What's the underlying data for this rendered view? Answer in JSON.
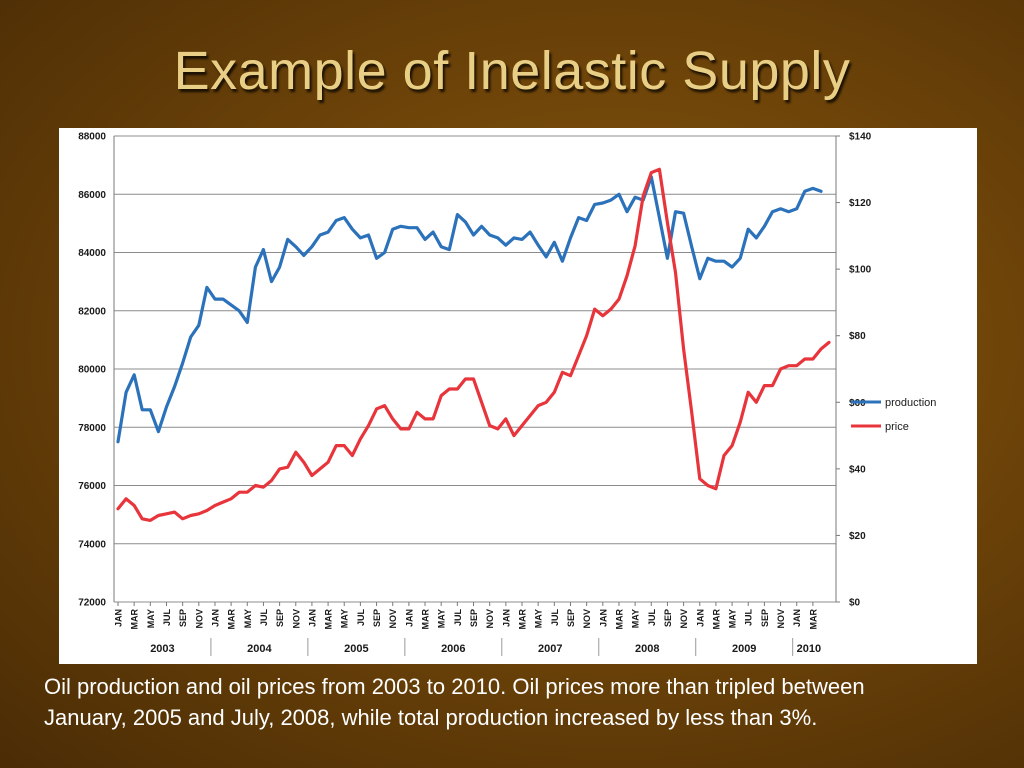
{
  "slide": {
    "title": "Example of Inelastic Supply",
    "caption": "Oil production and oil prices from 2003 to 2010.  Oil prices more than tripled between January, 2005 and July, 2008, while total production increased by less than 3%."
  },
  "chart_data": {
    "type": "line",
    "left_axis": {
      "min": 72000,
      "max": 88000,
      "ticks": [
        "72000",
        "74000",
        "76000",
        "78000",
        "80000",
        "82000",
        "84000",
        "86000",
        "88000"
      ]
    },
    "right_axis": {
      "min": 0,
      "max": 140,
      "ticks": [
        "$0",
        "$20",
        "$40",
        "$60",
        "$80",
        "$100",
        "$120",
        "$140"
      ]
    },
    "month_labels": [
      "JAN",
      "MAR",
      "MAY",
      "JUL",
      "SEP",
      "NOV"
    ],
    "month_indices": [
      0,
      2,
      4,
      6,
      8,
      10
    ],
    "years": [
      "2003",
      "2004",
      "2005",
      "2006",
      "2007",
      "2008",
      "2009",
      "2010"
    ],
    "grid": true,
    "legend_position": "right",
    "colors": {
      "production": "#2b72bb",
      "price": "#e8343b"
    },
    "series": [
      {
        "name": "production",
        "axis": "left",
        "values": [
          77500,
          79200,
          79800,
          78600,
          78600,
          77850,
          78700,
          79400,
          80200,
          81100,
          81500,
          82800,
          82400,
          82400,
          82200,
          82000,
          81600,
          83500,
          84100,
          83000,
          83500,
          84450,
          84200,
          83900,
          84200,
          84600,
          84700,
          85100,
          85200,
          84800,
          84500,
          84600,
          83800,
          84000,
          84800,
          84900,
          84850,
          84850,
          84450,
          84700,
          84200,
          84100,
          85300,
          85050,
          84600,
          84900,
          84600,
          84500,
          84250,
          84500,
          84450,
          84700,
          84250,
          83850,
          84350,
          83700,
          84500,
          85200,
          85100,
          85650,
          85700,
          85800,
          86000,
          85400,
          85900,
          85800,
          86600,
          85200,
          83800,
          85400,
          85350,
          84200,
          83100,
          83800,
          83700,
          83700,
          83500,
          83800,
          84800,
          84500,
          84900,
          85400,
          85500,
          85400,
          85500,
          86100,
          86200,
          86100
        ]
      },
      {
        "name": "price",
        "axis": "right",
        "values": [
          28,
          31,
          29,
          25,
          24.5,
          26,
          26.5,
          27,
          25,
          26,
          26.5,
          27.5,
          29,
          30,
          31,
          33,
          33,
          35,
          34.5,
          36.5,
          40,
          40.5,
          45,
          42,
          38,
          40,
          42,
          47,
          47,
          44,
          49,
          53,
          58,
          59,
          55,
          52,
          52,
          57,
          55,
          55,
          62,
          64,
          64,
          67,
          67,
          60,
          53,
          52,
          55,
          50,
          53,
          56,
          59,
          60,
          63,
          69,
          68,
          74,
          80,
          88,
          86,
          88,
          91,
          98,
          107,
          122,
          129,
          130,
          114,
          99,
          76,
          57,
          37,
          35,
          34,
          44,
          47,
          54,
          63,
          60,
          65,
          65,
          70,
          71,
          71,
          73,
          73,
          76,
          78
        ]
      }
    ]
  }
}
